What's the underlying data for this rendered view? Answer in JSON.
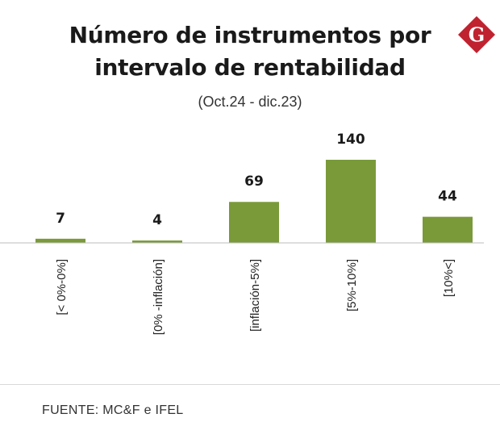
{
  "logo": {
    "letter": "G",
    "color": "#c0222f"
  },
  "chart_data": {
    "type": "bar",
    "title": "Número de instrumentos por intervalo de rentabilidad",
    "title_lines": [
      "Número de instrumentos por",
      "intervalo de rentabilidad"
    ],
    "subtitle": "(Oct.24 - dic.23)",
    "categories": [
      "[< 0%-0%]",
      "[0% -inflación]",
      "[inflación-5%]",
      "[5%-10%]",
      "[10%<]"
    ],
    "values": [
      7,
      4,
      69,
      140,
      44
    ],
    "xlabel": "",
    "ylabel": "",
    "ylim": [
      0,
      140
    ],
    "grid": false,
    "legend": "none",
    "bar_color": "#7a9a3a"
  },
  "source": "FUENTE: MC&F e IFEL"
}
